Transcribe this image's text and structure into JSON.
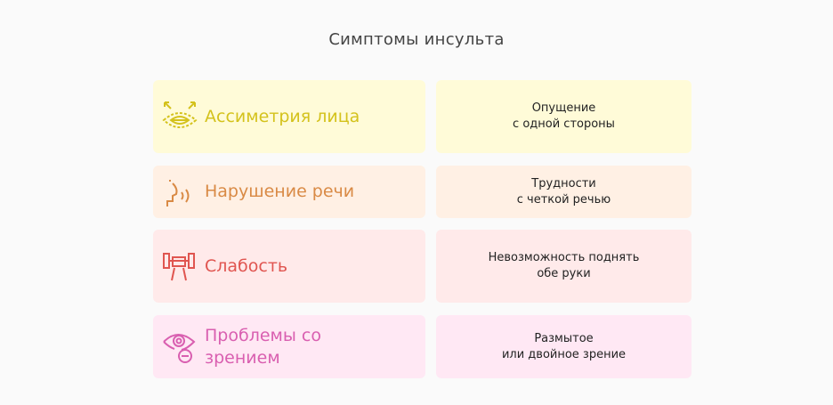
{
  "title": "Симптомы инсульта",
  "rows": [
    {
      "label": "Ассиметрия лица",
      "desc1": "Опущение",
      "desc2": "с одной стороны",
      "icon": "face-asymmetry-icon",
      "bg": "#fffbd8",
      "color": "#d4c21c"
    },
    {
      "label": "Нарушение речи",
      "desc1": "Трудности",
      "desc2": "с четкой речью",
      "icon": "speech-icon",
      "bg": "#fff0e4",
      "color": "#d98a45"
    },
    {
      "label": "Слабость",
      "desc1": "Невозможность поднять",
      "desc2": "обе руки",
      "icon": "dumbbell-arm-icon",
      "bg": "#ffeaea",
      "color": "#e05550"
    },
    {
      "label1": "Проблемы со",
      "label2": "зрением",
      "desc1": "Размытое",
      "desc2": "или двойное зрение",
      "icon": "eye-minus-icon",
      "bg": "#ffe8f4",
      "color": "#d95fb0"
    }
  ]
}
